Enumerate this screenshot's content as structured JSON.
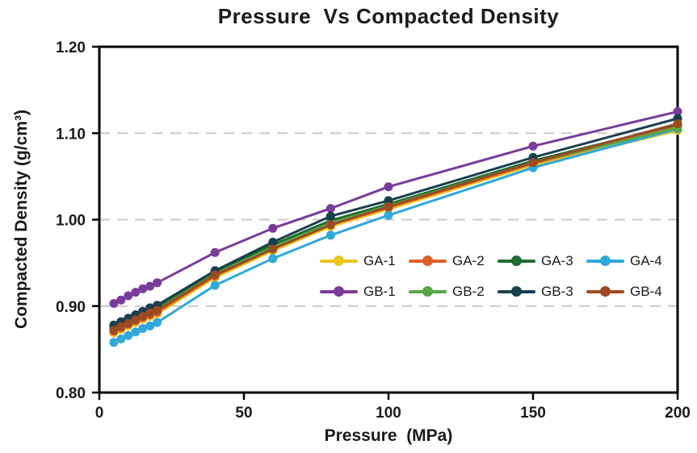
{
  "page": {
    "background": "#ffffff"
  },
  "chart_data": {
    "type": "line",
    "title": "Pressure  Vs Compacted Density",
    "xlabel": "Pressure  (MPa)",
    "ylabel": "Compacted Density (g/cm³)",
    "xlim": [
      0,
      200
    ],
    "ylim": [
      0.8,
      1.2
    ],
    "xticks": [
      0,
      50,
      100,
      150,
      200
    ],
    "yticks": [
      0.8,
      0.9,
      1.0,
      1.1,
      1.2
    ],
    "ytick_labels": [
      "0.80",
      "0.90",
      "1.00",
      "1.10",
      "1.20"
    ],
    "grid": "horizontal dashed gridlines at 0.90, 1.00, 1.10",
    "grid_color": "#c9c9c9",
    "legend_position": "inside plot, lower right, 2 rows x 4 columns",
    "x": [
      5,
      7.5,
      10,
      12.5,
      15,
      17.5,
      20,
      40,
      60,
      80,
      100,
      150,
      200
    ],
    "series": [
      {
        "name": "GA-1",
        "color": "#EDC41F",
        "values": [
          0.869,
          0.873,
          0.877,
          0.881,
          0.885,
          0.888,
          0.891,
          0.933,
          0.964,
          0.992,
          1.012,
          1.063,
          1.103
        ]
      },
      {
        "name": "GA-2",
        "color": "#DD6027",
        "values": [
          0.871,
          0.875,
          0.879,
          0.883,
          0.887,
          0.89,
          0.893,
          0.935,
          0.966,
          0.994,
          1.014,
          1.065,
          1.107
        ]
      },
      {
        "name": "GA-3",
        "color": "#206B30",
        "values": [
          0.876,
          0.88,
          0.884,
          0.888,
          0.892,
          0.896,
          0.899,
          0.94,
          0.971,
          0.999,
          1.018,
          1.068,
          1.11
        ]
      },
      {
        "name": "GA-4",
        "color": "#2FA8DC",
        "values": [
          0.858,
          0.862,
          0.866,
          0.87,
          0.874,
          0.877,
          0.881,
          0.924,
          0.955,
          0.982,
          1.005,
          1.06,
          1.105
        ]
      },
      {
        "name": "GB-1",
        "color": "#7A3B9B",
        "values": [
          0.903,
          0.907,
          0.912,
          0.916,
          0.92,
          0.923,
          0.927,
          0.962,
          0.99,
          1.013,
          1.038,
          1.085,
          1.125
        ]
      },
      {
        "name": "GB-2",
        "color": "#55A845",
        "values": [
          0.873,
          0.877,
          0.881,
          0.885,
          0.889,
          0.893,
          0.896,
          0.937,
          0.968,
          0.996,
          1.016,
          1.066,
          1.106
        ]
      },
      {
        "name": "GB-3",
        "color": "#18404F",
        "values": [
          0.878,
          0.882,
          0.886,
          0.89,
          0.894,
          0.898,
          0.901,
          0.941,
          0.974,
          1.004,
          1.022,
          1.072,
          1.117
        ]
      },
      {
        "name": "GB-4",
        "color": "#9E4A20",
        "values": [
          0.872,
          0.876,
          0.88,
          0.884,
          0.888,
          0.892,
          0.895,
          0.936,
          0.966,
          0.994,
          1.015,
          1.066,
          1.111
        ]
      }
    ]
  }
}
